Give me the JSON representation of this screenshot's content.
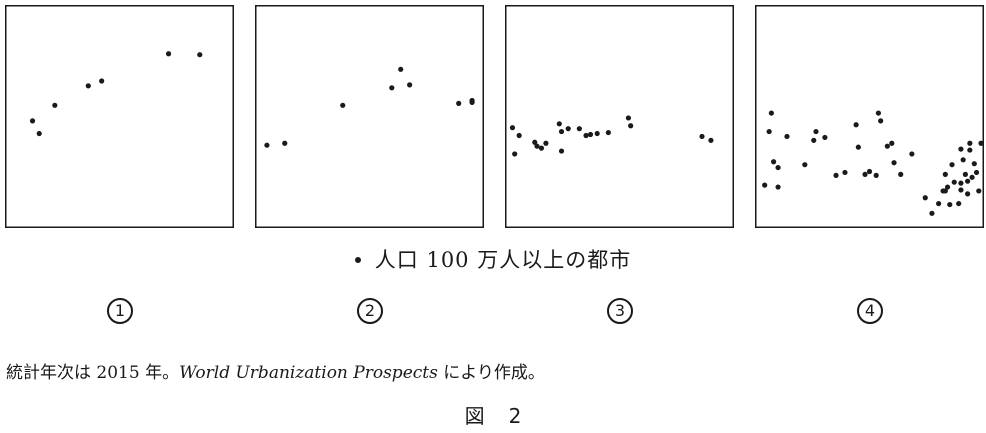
{
  "legend_text": "人口 100 万人以上の都市",
  "panels": [
    {
      "label": "1",
      "points": [
        [
          11,
          116
        ],
        [
          14,
          129
        ],
        [
          21,
          100
        ],
        [
          36,
          80
        ],
        [
          42,
          75
        ],
        [
          72,
          47
        ],
        [
          86,
          48
        ]
      ]
    },
    {
      "label": "2",
      "points": [
        [
          4,
          141
        ],
        [
          12,
          139
        ],
        [
          38,
          100
        ],
        [
          60,
          82
        ],
        [
          64,
          63
        ],
        [
          68,
          79
        ],
        [
          90,
          98
        ],
        [
          96,
          95
        ],
        [
          96,
          97
        ]
      ]
    },
    {
      "label": "3",
      "points": [
        [
          2,
          123
        ],
        [
          3,
          150
        ],
        [
          5,
          131
        ],
        [
          12,
          138
        ],
        [
          13,
          142
        ],
        [
          15,
          144
        ],
        [
          17,
          139
        ],
        [
          23,
          119
        ],
        [
          24,
          127
        ],
        [
          24,
          147
        ],
        [
          27,
          124
        ],
        [
          32,
          124
        ],
        [
          35,
          131
        ],
        [
          37,
          130
        ],
        [
          40,
          129
        ],
        [
          45,
          128
        ],
        [
          54,
          113
        ],
        [
          55,
          121
        ],
        [
          87,
          132
        ],
        [
          91,
          136
        ]
      ]
    },
    {
      "label": "4",
      "points": [
        [
          3,
          182
        ],
        [
          5,
          127
        ],
        [
          6,
          108
        ],
        [
          7,
          158
        ],
        [
          9,
          164
        ],
        [
          9,
          184
        ],
        [
          13,
          132
        ],
        [
          21,
          161
        ],
        [
          25,
          136
        ],
        [
          26,
          127
        ],
        [
          30,
          133
        ],
        [
          35,
          172
        ],
        [
          39,
          169
        ],
        [
          44,
          120
        ],
        [
          45,
          143
        ],
        [
          48,
          171
        ],
        [
          50,
          168
        ],
        [
          53,
          172
        ],
        [
          54,
          108
        ],
        [
          55,
          116
        ],
        [
          58,
          142
        ],
        [
          60,
          139
        ],
        [
          61,
          159
        ],
        [
          64,
          171
        ],
        [
          69,
          150
        ],
        [
          75,
          195
        ],
        [
          78,
          211
        ],
        [
          81,
          201
        ],
        [
          83,
          188
        ],
        [
          84,
          171
        ],
        [
          84,
          188
        ],
        [
          85,
          184
        ],
        [
          86,
          202
        ],
        [
          87,
          161
        ],
        [
          88,
          179
        ],
        [
          90,
          201
        ],
        [
          91,
          145
        ],
        [
          91,
          180
        ],
        [
          91,
          187
        ],
        [
          92,
          156
        ],
        [
          93,
          171
        ],
        [
          94,
          178
        ],
        [
          94,
          191
        ],
        [
          95,
          139
        ],
        [
          95,
          146
        ],
        [
          96,
          174
        ],
        [
          97,
          160
        ],
        [
          98,
          169
        ],
        [
          99,
          188
        ],
        [
          100,
          139
        ]
      ]
    }
  ],
  "source_prefix": "統計年次は 2015 年。",
  "source_italic": "World Urbanization Prospects",
  "source_suffix": " により作成。",
  "figure_caption_left": "図",
  "figure_caption_right": "2"
}
